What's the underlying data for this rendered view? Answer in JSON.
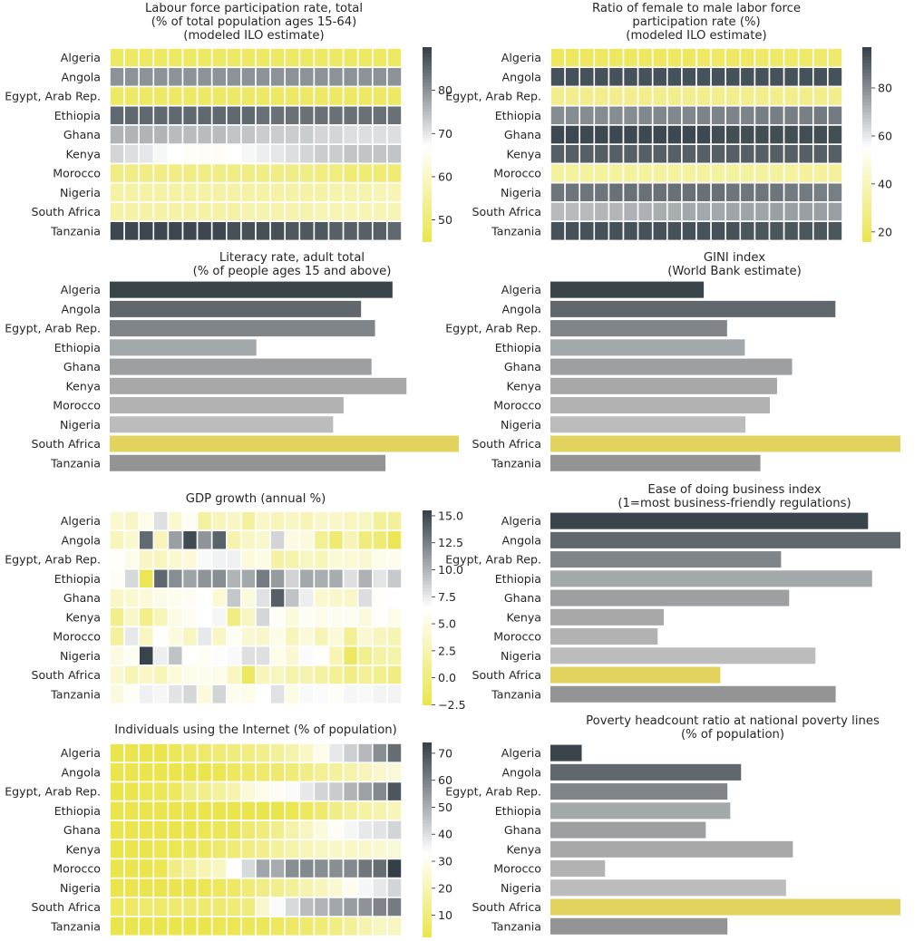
{
  "countries": [
    "Algeria",
    "Angola",
    "Egypt, Arab Rep.",
    "Ethiopia",
    "Ghana",
    "Kenya",
    "Morocco",
    "Nigeria",
    "South Africa",
    "Tanzania"
  ],
  "colors": {
    "low": "#ebe54d",
    "mid": "#ffffff",
    "high": "#343f47",
    "text": "#262626",
    "grid": "#ffffff"
  },
  "chart_data": [
    {
      "type": "heatmap",
      "title": "Labour force participation rate, total\n(% of total population ages 15-64)\n(modeled ILO estimate)",
      "colorbar": {
        "min": 45,
        "mid": 67,
        "max": 90,
        "ticks": [
          50,
          60,
          70,
          80
        ]
      },
      "rows": [
        [
          48,
          48,
          48,
          48,
          48,
          48,
          48,
          48,
          48,
          48,
          48,
          48,
          48,
          48,
          48,
          48,
          48,
          48,
          48,
          48
        ],
        [
          80,
          80,
          80,
          80,
          80,
          80,
          80,
          80,
          80,
          80,
          80,
          80,
          80,
          80,
          80,
          80,
          80,
          80,
          80,
          80
        ],
        [
          48,
          48,
          48,
          48,
          48,
          48,
          48,
          48,
          48,
          48,
          48,
          48,
          48,
          48,
          48,
          48,
          48,
          48,
          48,
          48
        ],
        [
          85,
          85,
          85,
          85,
          85,
          85,
          85,
          85,
          85,
          85,
          84,
          84,
          84,
          84,
          84,
          84,
          84,
          84,
          84,
          84
        ],
        [
          76,
          76,
          76,
          76,
          75,
          75,
          75,
          75,
          74,
          74,
          73,
          73,
          73,
          73,
          72,
          72,
          71,
          71,
          71,
          71
        ],
        [
          72,
          71,
          70,
          68,
          67,
          66,
          66,
          66,
          67,
          68,
          69,
          70,
          71,
          72,
          73,
          73,
          74,
          74,
          74,
          74
        ],
        [
          52,
          52,
          52,
          52,
          52,
          52,
          52,
          52,
          52,
          52,
          52,
          52,
          52,
          52,
          51,
          51,
          50,
          50,
          50,
          50
        ],
        [
          56,
          56,
          56,
          56,
          56,
          56,
          56,
          56,
          56,
          56,
          56,
          56,
          56,
          56,
          56,
          57,
          57,
          57,
          58,
          58
        ],
        [
          56,
          56,
          56,
          56,
          56,
          56,
          56,
          56,
          56,
          57,
          57,
          57,
          57,
          57,
          58,
          58,
          58,
          58,
          58,
          58
        ],
        [
          89,
          89,
          89,
          89,
          89,
          89,
          89,
          89,
          88,
          88,
          88,
          88,
          87,
          87,
          87,
          86,
          86,
          86,
          86,
          85
        ]
      ]
    },
    {
      "type": "heatmap",
      "title": "Ratio of female to male labor force\nparticipation rate (%)\n(modeled ILO estimate)",
      "colorbar": {
        "min": 16,
        "mid": 55,
        "max": 97,
        "ticks": [
          20,
          40,
          60,
          80
        ]
      },
      "rows": [
        [
          20,
          20,
          20,
          20,
          20,
          20,
          20,
          20,
          20,
          20,
          21,
          21,
          21,
          21,
          22,
          22,
          22,
          22,
          23,
          23
        ],
        [
          93,
          93,
          93,
          93,
          93,
          93,
          93,
          93,
          93,
          93,
          93,
          93,
          93,
          93,
          93,
          93,
          93,
          93,
          93,
          93
        ],
        [
          30,
          30,
          30,
          30,
          30,
          30,
          30,
          30,
          30,
          30,
          30,
          30,
          30,
          30,
          30,
          30,
          30,
          30,
          30,
          30
        ],
        [
          80,
          80,
          80,
          80,
          80,
          80,
          81,
          81,
          81,
          81,
          82,
          82,
          82,
          82,
          83,
          83,
          83,
          83,
          84,
          84
        ],
        [
          95,
          95,
          95,
          95,
          95,
          95,
          95,
          95,
          95,
          95,
          95,
          94,
          94,
          94,
          94,
          94,
          94,
          94,
          94,
          94
        ],
        [
          90,
          90,
          90,
          90,
          90,
          90,
          90,
          90,
          90,
          90,
          90,
          90,
          90,
          90,
          90,
          90,
          90,
          90,
          90,
          90
        ],
        [
          34,
          34,
          34,
          34,
          34,
          34,
          34,
          34,
          34,
          34,
          34,
          34,
          34,
          34,
          34,
          34,
          34,
          33,
          33,
          33
        ],
        [
          85,
          85,
          85,
          85,
          86,
          86,
          86,
          86,
          86,
          86,
          86,
          86,
          85,
          85,
          85,
          85,
          84,
          84,
          83,
          83
        ],
        [
          70,
          70,
          70,
          71,
          71,
          72,
          72,
          73,
          73,
          74,
          74,
          74,
          75,
          75,
          75,
          76,
          76,
          76,
          76,
          76
        ],
        [
          93,
          93,
          93,
          93,
          93,
          93,
          93,
          93,
          93,
          93,
          93,
          93,
          93,
          92,
          92,
          92,
          92,
          92,
          92,
          92
        ]
      ]
    },
    {
      "type": "bar",
      "title": "Literacy rate, adult total\n(% of people ages 15 and above)",
      "values": [
        81,
        72,
        76,
        42,
        75,
        85,
        67,
        64,
        100,
        79
      ]
    },
    {
      "type": "bar",
      "title": "GINI index\n(World Bank estimate)",
      "values": [
        27.6,
        51.3,
        31.8,
        35.0,
        43.5,
        40.8,
        39.5,
        35.1,
        63.0,
        37.8
      ]
    },
    {
      "type": "heatmap",
      "title": "GDP growth (annual %)",
      "colorbar": {
        "min": -2.5,
        "mid": 6.5,
        "max": 15.5,
        "ticks": [
          -2.5,
          0.0,
          2.5,
          5.0,
          7.5,
          10.0,
          12.5,
          15.0
        ]
      },
      "rows": [
        [
          4.0,
          3.5,
          5.5,
          8.0,
          4.0,
          5.9,
          1.7,
          3.0,
          3.5,
          1.6,
          3.6,
          2.9,
          3.4,
          2.8,
          3.8,
          3.7,
          3.2,
          3.3,
          1.3,
          1.4
        ],
        [
          3.0,
          4.0,
          13.5,
          3.0,
          11.0,
          15.0,
          11.5,
          13.8,
          2.4,
          3.4,
          3.9,
          8.5,
          5.0,
          4.8,
          1.0,
          -0.7,
          2.8,
          -0.1,
          -0.6,
          -2.0
        ],
        [
          6.3,
          5.4,
          3.5,
          3.2,
          4.1,
          4.5,
          6.8,
          7.1,
          7.2,
          4.7,
          5.1,
          1.8,
          2.2,
          3.3,
          2.9,
          4.4,
          4.3,
          4.2,
          5.3,
          5.6
        ],
        [
          6.1,
          8.3,
          -2.1,
          13.6,
          11.8,
          10.8,
          11.5,
          11.8,
          10.0,
          10.6,
          12.6,
          11.2,
          8.6,
          10.6,
          10.3,
          10.4,
          8.0,
          10.1,
          7.7,
          9.0
        ],
        [
          3.7,
          4.0,
          4.5,
          5.2,
          5.6,
          5.9,
          6.4,
          4.3,
          9.1,
          4.8,
          7.9,
          14.0,
          9.3,
          7.3,
          4.0,
          3.8,
          3.7,
          8.1,
          6.3,
          6.5
        ],
        [
          0.6,
          3.8,
          0.5,
          2.9,
          5.1,
          5.9,
          6.5,
          6.9,
          0.2,
          3.3,
          8.4,
          6.1,
          4.6,
          5.9,
          5.4,
          5.7,
          5.9,
          4.8,
          6.3,
          5.4
        ],
        [
          1.6,
          7.6,
          3.3,
          6.3,
          4.8,
          3.3,
          7.6,
          3.5,
          5.9,
          4.2,
          3.8,
          5.2,
          3.0,
          4.5,
          2.7,
          4.5,
          1.1,
          4.2,
          3.1,
          2.6
        ],
        [
          5.0,
          5.9,
          15.3,
          7.3,
          9.3,
          6.4,
          6.1,
          6.6,
          6.8,
          8.0,
          8.0,
          5.3,
          4.2,
          6.7,
          6.3,
          2.7,
          -1.6,
          0.8,
          1.9,
          2.2
        ],
        [
          4.2,
          2.7,
          3.7,
          2.9,
          4.6,
          5.3,
          5.6,
          5.4,
          3.2,
          -1.5,
          3.0,
          3.3,
          2.2,
          2.5,
          1.8,
          1.2,
          0.4,
          1.4,
          0.8,
          0.2
        ],
        [
          4.9,
          6.0,
          7.2,
          6.9,
          7.8,
          8.4,
          4.7,
          8.5,
          5.6,
          5.4,
          6.4,
          7.9,
          5.1,
          6.8,
          6.7,
          6.2,
          6.9,
          6.8,
          7.0,
          7.0
        ]
      ]
    },
    {
      "type": "bar",
      "title": "Ease of doing business index\n(1=most business-friendly regulations)",
      "values": [
        157,
        173,
        114,
        159,
        118,
        56,
        53,
        131,
        84,
        141
      ]
    },
    {
      "type": "heatmap",
      "title": "Individuals using the Internet (% of population)",
      "colorbar": {
        "min": 2,
        "mid": 33,
        "max": 74,
        "ticks": [
          10,
          20,
          30,
          40,
          50,
          60,
          70
        ]
      },
      "rows": [
        [
          1,
          1,
          1,
          2,
          4,
          6,
          7,
          9,
          10,
          11,
          13,
          15,
          18,
          23,
          29,
          38,
          43,
          48,
          57,
          64
        ],
        [
          0,
          0,
          1,
          1,
          1,
          1,
          2,
          3,
          5,
          6,
          7,
          8,
          9,
          12,
          14,
          16,
          18,
          21,
          24,
          26
        ],
        [
          1,
          1,
          3,
          4,
          5,
          12,
          13,
          16,
          19,
          26,
          29,
          31,
          34,
          38,
          42,
          44,
          49,
          53,
          58,
          69
        ],
        [
          0,
          0,
          0,
          0,
          0,
          0,
          0,
          0,
          1,
          1,
          1,
          2,
          3,
          5,
          8,
          12,
          15,
          17,
          19,
          21
        ],
        [
          0,
          0,
          1,
          1,
          2,
          2,
          3,
          4,
          4,
          8,
          10,
          13,
          18,
          22,
          27,
          31,
          35,
          38,
          39,
          42
        ],
        [
          1,
          1,
          2,
          3,
          3,
          4,
          5,
          7,
          9,
          11,
          13,
          16,
          18,
          21,
          22,
          23,
          23,
          24,
          25,
          26
        ],
        [
          1,
          1,
          2,
          3,
          12,
          15,
          20,
          22,
          33,
          41,
          52,
          51,
          57,
          58,
          57,
          57,
          58,
          62,
          64,
          74
        ],
        [
          0,
          0,
          0,
          1,
          1,
          2,
          3,
          5,
          6,
          9,
          12,
          13,
          15,
          19,
          21,
          25,
          30,
          35,
          38,
          42
        ],
        [
          5,
          6,
          7,
          7,
          8,
          8,
          8,
          8,
          9,
          10,
          24,
          34,
          41,
          47,
          49,
          52,
          54,
          56,
          59,
          61
        ],
        [
          0,
          0,
          1,
          1,
          1,
          2,
          2,
          3,
          3,
          4,
          4,
          5,
          6,
          7,
          9,
          11,
          15,
          19,
          22,
          22
        ]
      ]
    },
    {
      "type": "bar",
      "title": "Poverty headcount ratio at national poverty lines\n(% of population)",
      "values": [
        5.5,
        36.6,
        32.5,
        23.5,
        23.4,
        36.1,
        4.8,
        40.1,
        55.5,
        26.4
      ],
      "lengths": [
        5.5,
        33.5,
        31.1,
        31.6,
        27.3,
        42.6,
        9.6,
        41.4,
        61.5,
        31.1
      ]
    }
  ]
}
